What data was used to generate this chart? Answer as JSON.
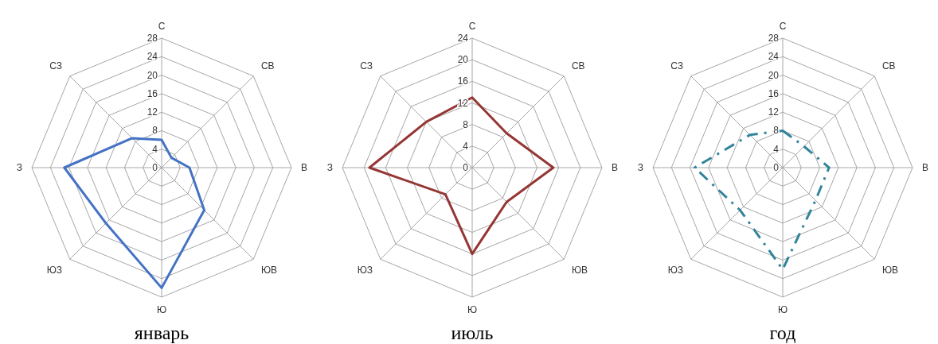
{
  "chart_data": [
    {
      "type": "radar",
      "title": "январь",
      "categories": [
        "С",
        "СВ",
        "В",
        "ЮВ",
        "Ю",
        "ЮЗ",
        "З",
        "СЗ"
      ],
      "series": [
        {
          "color": "#4472c4",
          "values": [
            6,
            3,
            6,
            13,
            26,
            17,
            21,
            9
          ]
        }
      ],
      "ylim": [
        0,
        28
      ],
      "yticks": [
        0,
        4,
        8,
        12,
        16,
        20,
        24,
        28
      ],
      "grid": true,
      "legend": false,
      "marker": "none",
      "line_style": "solid"
    },
    {
      "type": "radar",
      "title": "июль",
      "categories": [
        "С",
        "СВ",
        "В",
        "ЮВ",
        "Ю",
        "ЮЗ",
        "З",
        "СЗ"
      ],
      "series": [
        {
          "color": "#943634",
          "values": [
            13,
            9,
            15,
            9,
            16,
            7,
            19,
            12
          ]
        }
      ],
      "ylim": [
        0,
        24
      ],
      "yticks": [
        0,
        4,
        8,
        12,
        16,
        20,
        24
      ],
      "grid": true,
      "legend": false,
      "marker": "none",
      "line_style": "solid"
    },
    {
      "type": "radar",
      "title": "год",
      "categories": [
        "С",
        "СВ",
        "В",
        "ЮВ",
        "Ю",
        "ЮЗ",
        "З",
        "СЗ"
      ],
      "series": [
        {
          "color": "#31849b",
          "values": [
            8,
            6.5,
            10,
            10,
            22,
            13,
            19,
            10
          ]
        }
      ],
      "ylim": [
        0,
        28
      ],
      "yticks": [
        0,
        4,
        8,
        12,
        16,
        20,
        24,
        28
      ],
      "grid": true,
      "legend": false,
      "marker": "none",
      "line_style": "dashed"
    }
  ]
}
